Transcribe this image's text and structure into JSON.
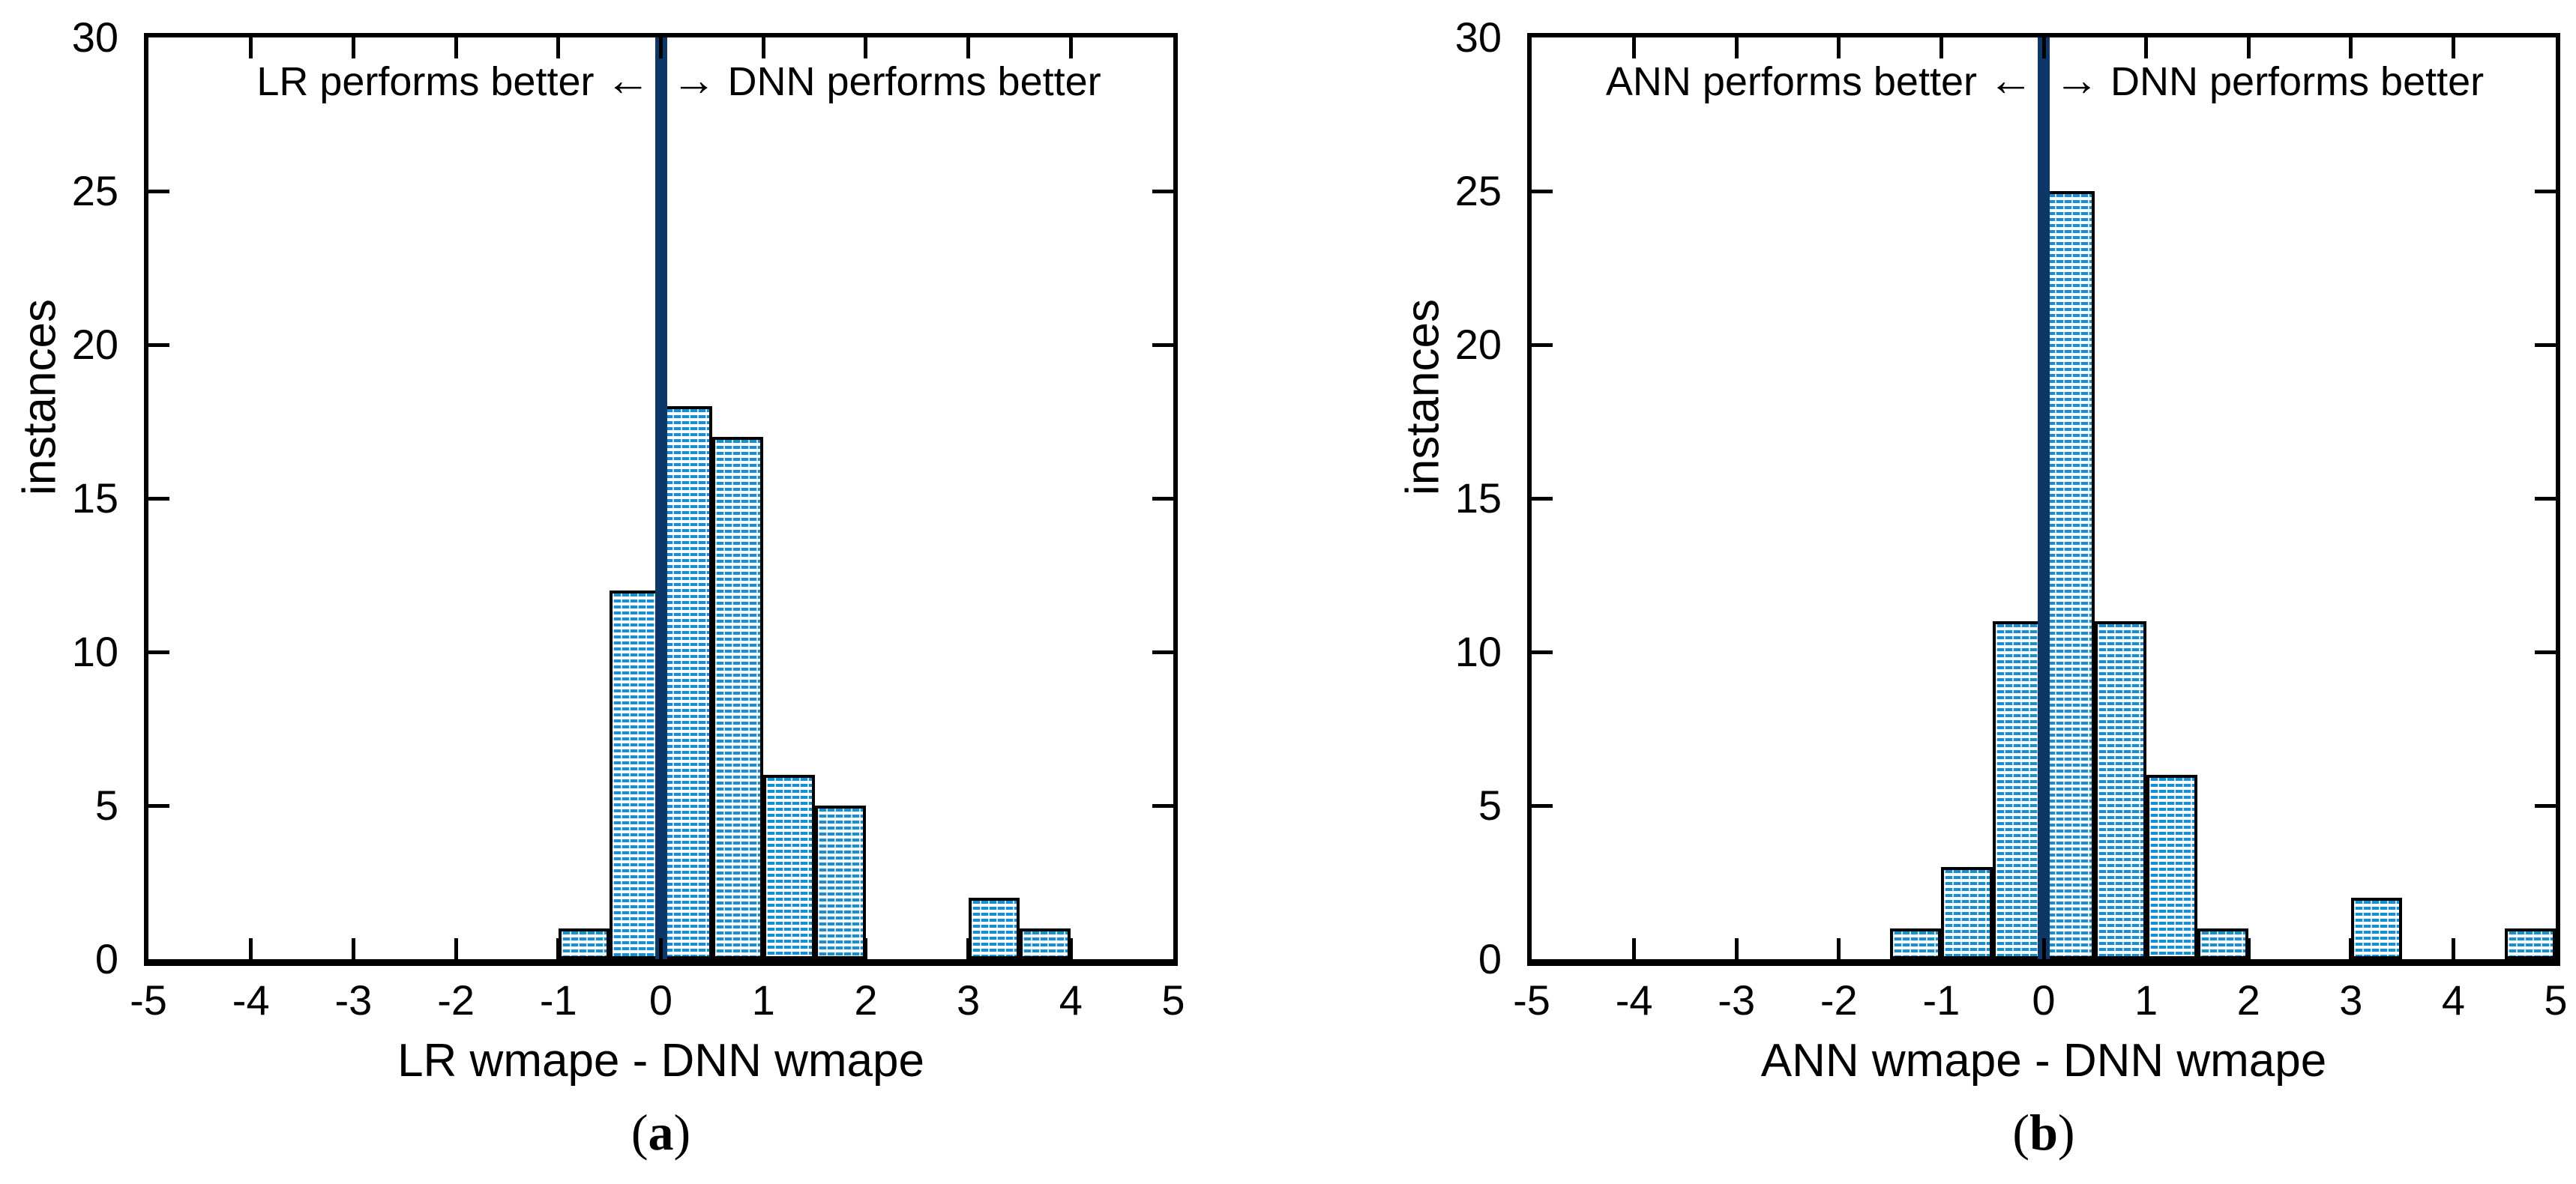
{
  "colors": {
    "bar_fill_stripe": "#178fd0",
    "bar_outline": "#000000",
    "zero_line": "#0d3767",
    "axis": "#000000",
    "background": "#ffffff",
    "text": "#000000"
  },
  "chart_data": [
    {
      "type": "bar",
      "panel": "a",
      "xlabel": "LR wmape - DNN wmape",
      "ylabel": "instances",
      "xlim": [
        -5,
        5
      ],
      "ylim": [
        0,
        30
      ],
      "x_ticks": [
        -5,
        -4,
        -3,
        -2,
        -1,
        0,
        1,
        2,
        3,
        4,
        5
      ],
      "y_ticks": [
        0,
        5,
        10,
        15,
        20,
        25,
        30
      ],
      "bin_width": 0.5,
      "grid": false,
      "zero_line_x": 0,
      "bars": [
        {
          "from": -1.0,
          "to": -0.5,
          "count": 1
        },
        {
          "from": -0.5,
          "to": 0.0,
          "count": 12
        },
        {
          "from": 0.0,
          "to": 0.5,
          "count": 18
        },
        {
          "from": 0.5,
          "to": 1.0,
          "count": 17
        },
        {
          "from": 1.0,
          "to": 1.5,
          "count": 6
        },
        {
          "from": 1.5,
          "to": 2.0,
          "count": 5
        },
        {
          "from": 3.0,
          "to": 3.5,
          "count": 2
        },
        {
          "from": 3.5,
          "to": 4.0,
          "count": 1
        }
      ],
      "annotation": {
        "left": "LR performs better",
        "left_arrow": "←",
        "right_arrow": "→",
        "right": "DNN performs better"
      },
      "caption": {
        "open": "(",
        "letter": "a",
        "close": ")"
      }
    },
    {
      "type": "bar",
      "panel": "b",
      "xlabel": "ANN wmape - DNN wmape",
      "ylabel": "instances",
      "xlim": [
        -5,
        5
      ],
      "ylim": [
        0,
        30
      ],
      "x_ticks": [
        -5,
        -4,
        -3,
        -2,
        -1,
        0,
        1,
        2,
        3,
        4,
        5
      ],
      "y_ticks": [
        0,
        5,
        10,
        15,
        20,
        25,
        30
      ],
      "bin_width": 0.5,
      "grid": false,
      "zero_line_x": 0,
      "bars": [
        {
          "from": -1.5,
          "to": -1.0,
          "count": 1
        },
        {
          "from": -1.0,
          "to": -0.5,
          "count": 3
        },
        {
          "from": -0.5,
          "to": 0.0,
          "count": 11
        },
        {
          "from": 0.0,
          "to": 0.5,
          "count": 25
        },
        {
          "from": 0.5,
          "to": 1.0,
          "count": 11
        },
        {
          "from": 1.0,
          "to": 1.5,
          "count": 6
        },
        {
          "from": 1.5,
          "to": 2.0,
          "count": 1
        },
        {
          "from": 3.0,
          "to": 3.5,
          "count": 2
        },
        {
          "from": 4.5,
          "to": 5.0,
          "count": 1
        }
      ],
      "annotation": {
        "left": "ANN performs better",
        "left_arrow": "←",
        "right_arrow": "→",
        "right": "DNN performs better"
      },
      "caption": {
        "open": "(",
        "letter": "b",
        "close": ")"
      }
    }
  ]
}
